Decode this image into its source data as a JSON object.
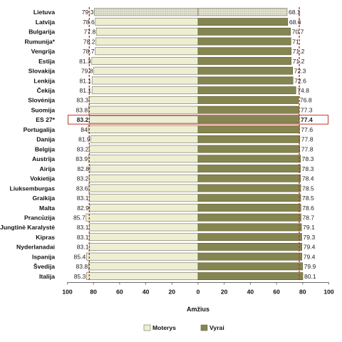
{
  "chart_data": {
    "type": "bar",
    "orientation": "horizontal-butterfly",
    "categories": [
      "Lietuva",
      "Latvija",
      "Bulgarija",
      "Rumunija*",
      "Vengrija",
      "Estija",
      "Slovakija",
      "Lenkija",
      "Čekija",
      "Slovėnija",
      "Suomija",
      "ES 27*",
      "Portugalija",
      "Danija",
      "Belgija",
      "Austrija",
      "Airija",
      "Vokietija",
      "Liuksemburgas",
      "Graikija",
      "Malta",
      "Prancūzija",
      "Jungtinė Karalystė",
      "Kipras",
      "Nyderlanadai",
      "Ispanija",
      "Švedija",
      "Italija"
    ],
    "series": [
      {
        "name": "Moterys",
        "color": "#eeeed2",
        "values": [
          79.3,
          78.6,
          77.8,
          78.2,
          78.7,
          81.3,
          79.8,
          81.1,
          81.1,
          83.3,
          83.8,
          83.2,
          84,
          81.9,
          83.2,
          83.9,
          82.8,
          83.2,
          83.6,
          83.1,
          82.9,
          85.7,
          83.1,
          83.1,
          83.1,
          85.4,
          83.8,
          85.3
        ],
        "labels": [
          "79.3",
          "78.6",
          "77.8",
          "78.2",
          "78.7",
          "81.3",
          "79.8",
          "81.1",
          "81.1",
          "83.3",
          "83.8",
          "83.2",
          "84",
          "81.9",
          "83.2",
          "83.9",
          "82.8",
          "83.2",
          "83.6",
          "83.1",
          "82.9",
          "85.7",
          "83.1",
          "83.1",
          "83.1",
          "85.4",
          "83.8",
          "85.3"
        ]
      },
      {
        "name": "Vyrai",
        "color": "#858550",
        "values": [
          68.1,
          68.6,
          70.7,
          71,
          71.2,
          71.2,
          72.3,
          72.6,
          74.8,
          76.8,
          77.3,
          77.4,
          77.6,
          77.8,
          77.8,
          78.3,
          78.3,
          78.4,
          78.5,
          78.5,
          78.6,
          78.7,
          79.1,
          79.3,
          79.4,
          79.4,
          79.9,
          80.1
        ],
        "labels": [
          "68.1",
          "68.6",
          "70.7",
          "71",
          "71.2",
          "71.2",
          "72.3",
          "72.6",
          "74.8",
          "76.8",
          "77.3",
          "77.4",
          "77.6",
          "77.8",
          "77.8",
          "78.3",
          "78.3",
          "78.4",
          "78.5",
          "78.5",
          "78.6",
          "78.7",
          "79.1",
          "79.3",
          "79.4",
          "79.4",
          "79.9",
          "80.1"
        ]
      }
    ],
    "highlight_category": "ES 27*",
    "xlabel": "Amžius",
    "x_ticks": [
      "100",
      "80",
      "60",
      "40",
      "20",
      "0",
      "20",
      "40",
      "60",
      "80",
      "100"
    ],
    "xlim": [
      -100,
      100
    ],
    "reference_lines": {
      "Moterys": 83.2,
      "Vyrai": 77.4
    },
    "reference_line_color": "#c0392b",
    "grid": false,
    "legend_position": "bottom"
  }
}
